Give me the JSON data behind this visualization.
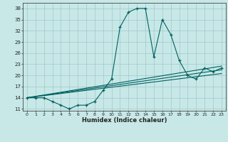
{
  "xlabel": "Humidex (Indice chaleur)",
  "ylabel": "",
  "background_color": "#c8e8e8",
  "grid_color": "#a0c8c8",
  "line_color": "#006060",
  "xlim": [
    -0.5,
    23.5
  ],
  "ylim": [
    10.5,
    39.5
  ],
  "xticks": [
    0,
    1,
    2,
    3,
    4,
    5,
    6,
    7,
    8,
    9,
    10,
    11,
    12,
    13,
    14,
    15,
    16,
    17,
    18,
    19,
    20,
    21,
    22,
    23
  ],
  "yticks": [
    11,
    14,
    17,
    20,
    23,
    26,
    29,
    32,
    35,
    38
  ],
  "main_series_x": [
    0,
    1,
    2,
    3,
    4,
    5,
    6,
    7,
    8,
    9,
    10,
    11,
    12,
    13,
    14,
    15,
    16,
    17,
    18,
    19,
    20,
    21,
    22,
    23
  ],
  "main_series_y": [
    14,
    14,
    14,
    13,
    12,
    11,
    12,
    12,
    13,
    16,
    19,
    33,
    37,
    38,
    38,
    25,
    35,
    31,
    24,
    20,
    19,
    22,
    21,
    22
  ],
  "line1_x": [
    0,
    23
  ],
  "line1_y": [
    14.0,
    20.5
  ],
  "line2_x": [
    0,
    23
  ],
  "line2_y": [
    14.0,
    21.5
  ],
  "line3_x": [
    0,
    23
  ],
  "line3_y": [
    14.0,
    22.5
  ]
}
